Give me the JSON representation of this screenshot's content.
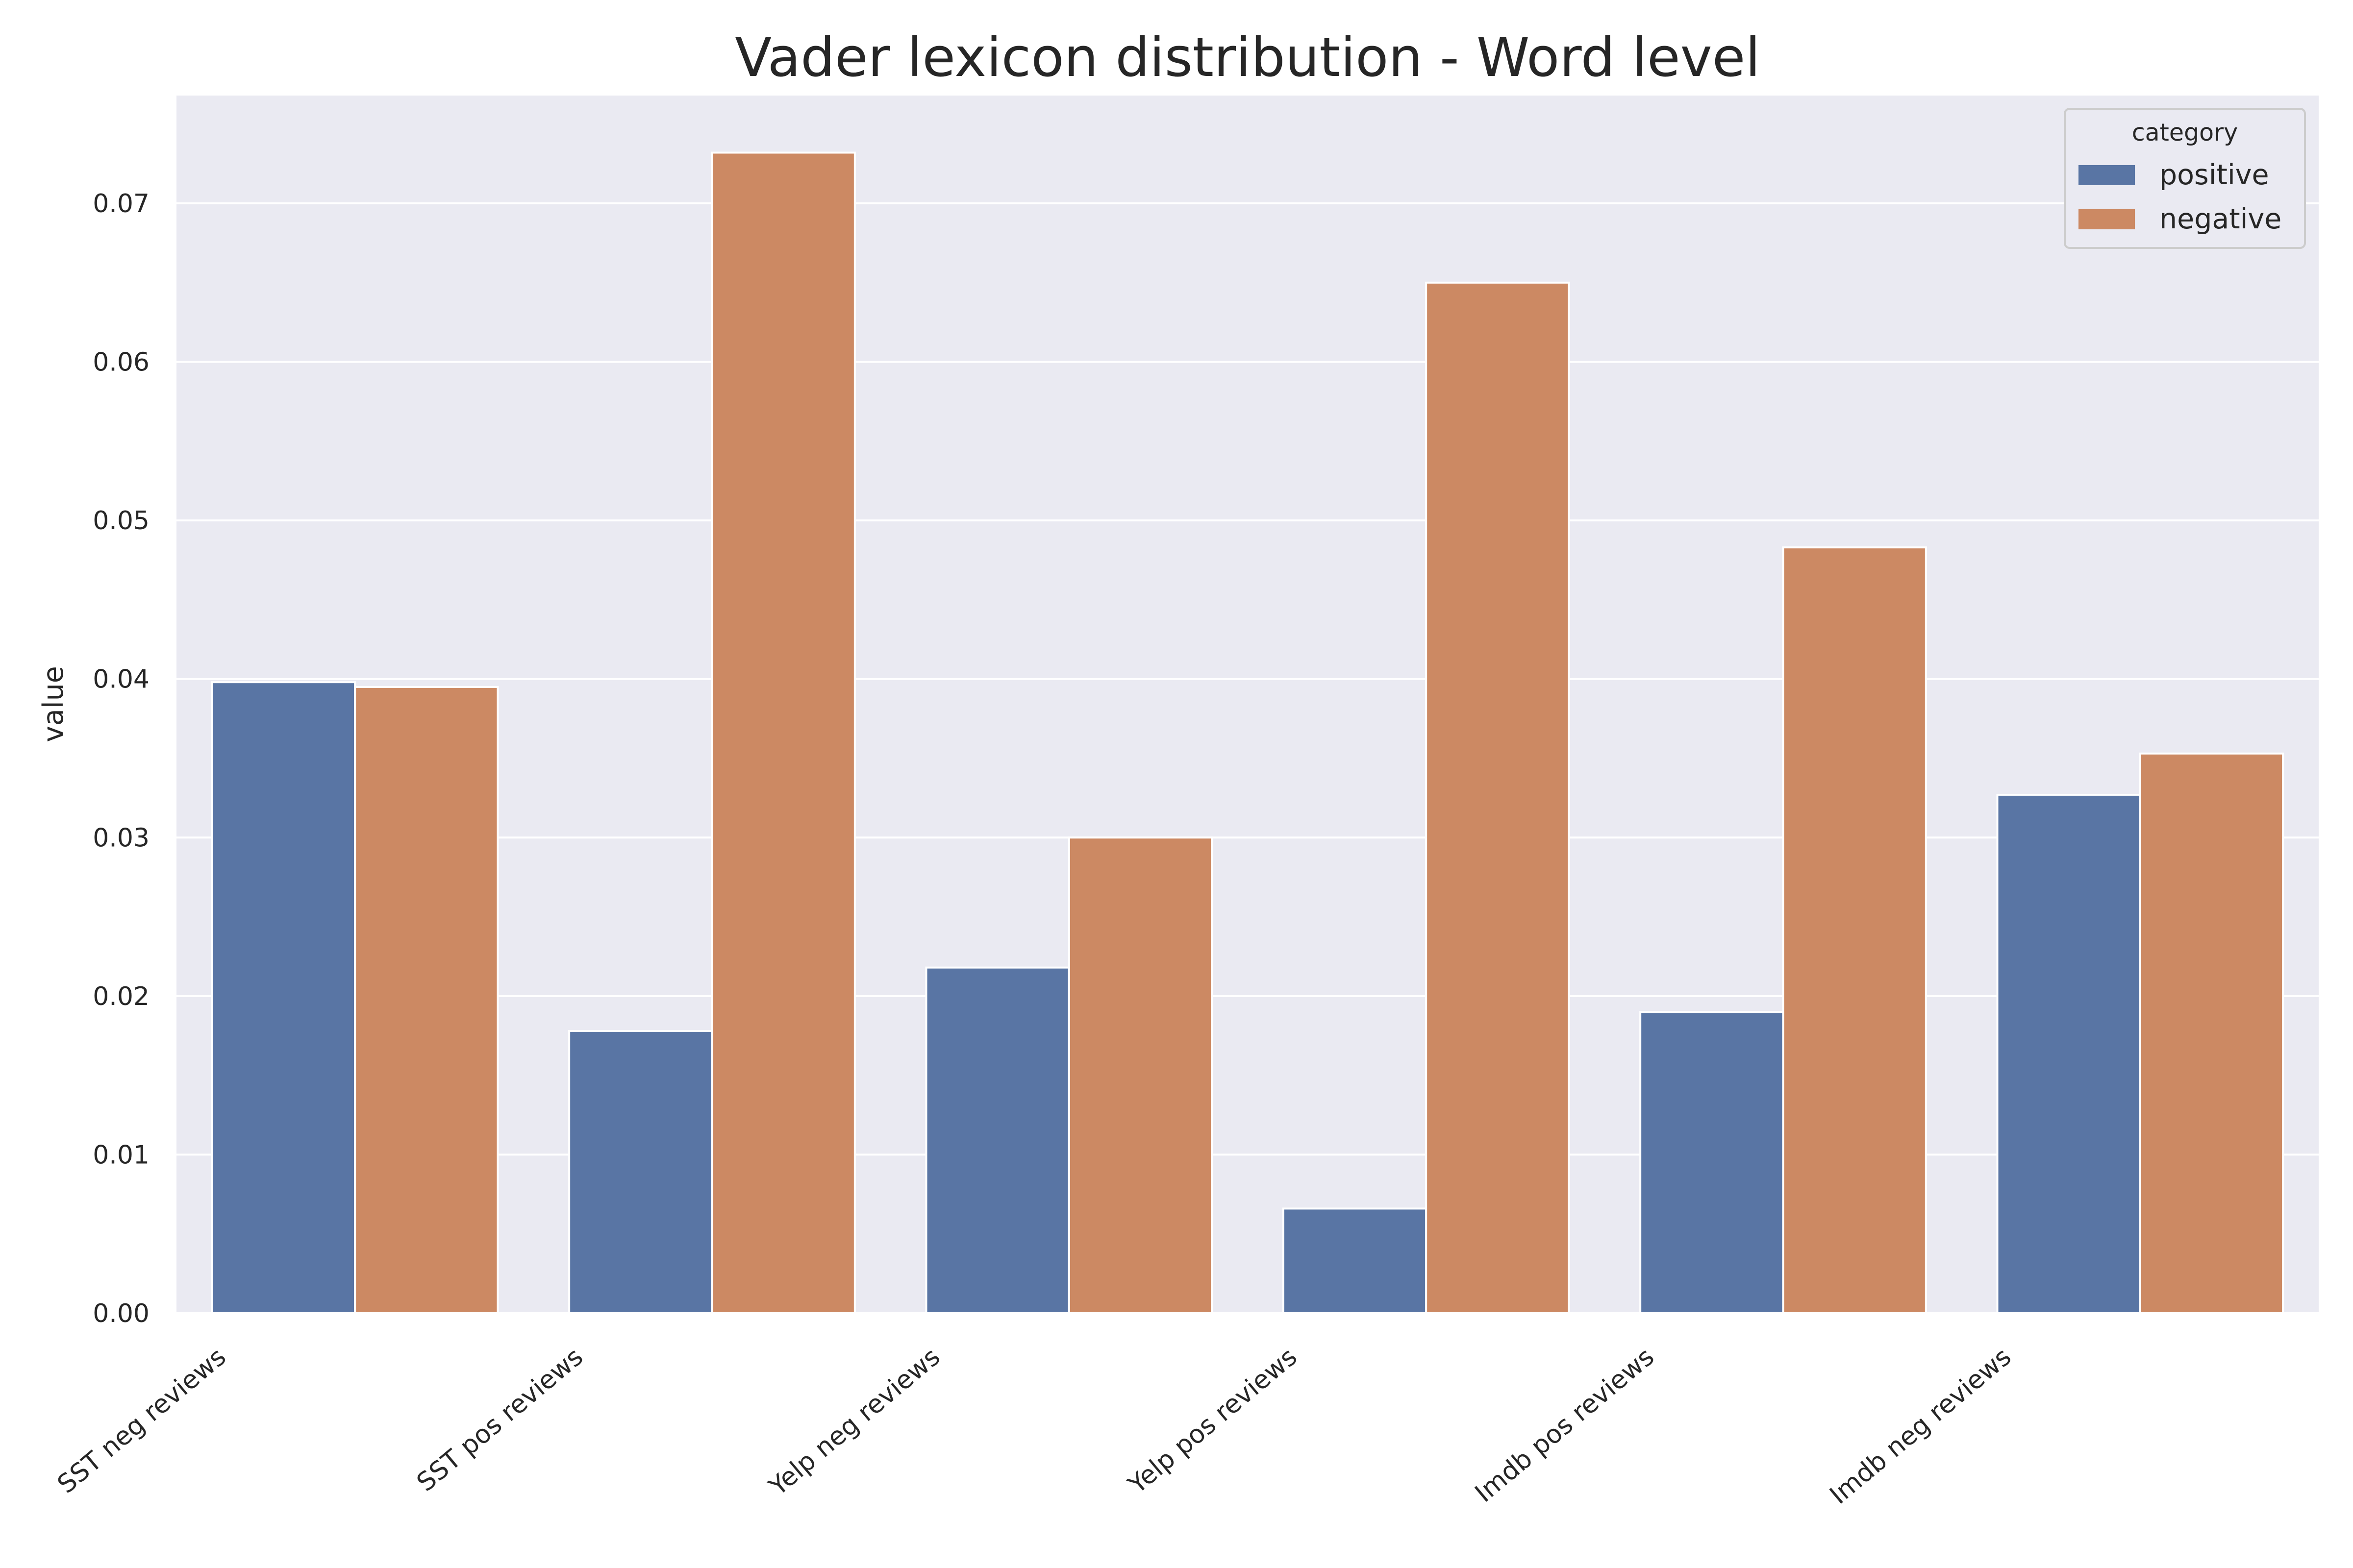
{
  "chart_data": {
    "type": "bar",
    "title": "Vader lexicon distribution - Word level",
    "xlabel": "",
    "ylabel": "value",
    "categories": [
      "SST neg reviews",
      "SST pos reviews",
      "Yelp neg reviews",
      "Yelp pos reviews",
      "Imdb pos reviews",
      "Imdb neg reviews"
    ],
    "series": [
      {
        "name": "positive",
        "color": "#5975a4",
        "values": [
          0.0398,
          0.0178,
          0.0218,
          0.0066,
          0.019,
          0.0327
        ]
      },
      {
        "name": "negative",
        "color": "#cc8963",
        "values": [
          0.0395,
          0.0732,
          0.03,
          0.065,
          0.0483,
          0.0353
        ]
      }
    ],
    "ylim": [
      0,
      0.0768
    ],
    "yticks": [
      "0.00",
      "0.01",
      "0.02",
      "0.03",
      "0.04",
      "0.05",
      "0.06",
      "0.07"
    ],
    "grid": true,
    "legend": {
      "title": "category",
      "placement": "top-right"
    }
  }
}
